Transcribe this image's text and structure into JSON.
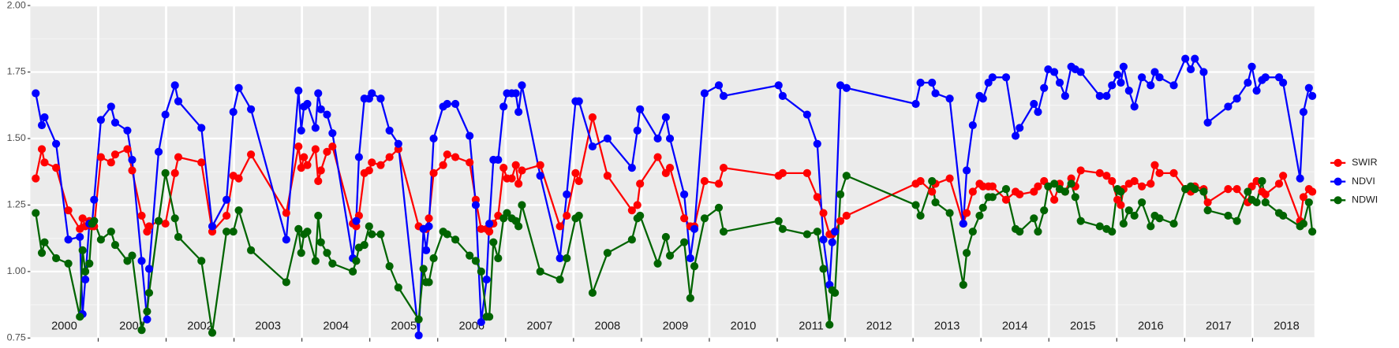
{
  "chart_data": {
    "type": "line",
    "x": [
      2000.08,
      2000.17,
      2000.21,
      2000.38,
      2000.56,
      2000.73,
      2000.77,
      2000.81,
      2000.87,
      2000.91,
      2000.94,
      2001.04,
      2001.19,
      2001.25,
      2001.43,
      2001.5,
      2001.64,
      2001.72,
      2001.75,
      2001.89,
      2001.99,
      2002.13,
      2002.18,
      2002.52,
      2002.68,
      2002.89,
      2002.99,
      2003.07,
      2003.25,
      2003.77,
      2003.95,
      2003.99,
      2004.03,
      2004.08,
      2004.2,
      2004.24,
      2004.28,
      2004.37,
      2004.45,
      2004.75,
      2004.8,
      2004.84,
      2004.92,
      2004.99,
      2005.03,
      2005.16,
      2005.29,
      2005.42,
      2005.72,
      2005.79,
      2005.83,
      2005.87,
      2005.94,
      2006.08,
      2006.14,
      2006.26,
      2006.47,
      2006.56,
      2006.64,
      2006.72,
      2006.76,
      2006.82,
      2006.89,
      2006.97,
      2007.02,
      2007.09,
      2007.15,
      2007.19,
      2007.24,
      2007.51,
      2007.8,
      2007.9,
      2008.03,
      2008.08,
      2008.28,
      2008.5,
      2008.86,
      2008.94,
      2008.98,
      2009.24,
      2009.36,
      2009.42,
      2009.63,
      2009.72,
      2009.78,
      2009.93,
      2010.14,
      2010.21,
      2011.02,
      2011.08,
      2011.44,
      2011.59,
      2011.68,
      2011.77,
      2011.81,
      2011.85,
      2011.93,
      2012.02,
      2013.04,
      2013.11,
      2013.28,
      2013.33,
      2013.54,
      2013.74,
      2013.79,
      2013.88,
      2013.98,
      2014.03,
      2014.11,
      2014.17,
      2014.37,
      2014.51,
      2014.57,
      2014.78,
      2014.84,
      2014.93,
      2014.99,
      2015.08,
      2015.16,
      2015.24,
      2015.33,
      2015.39,
      2015.47,
      2015.75,
      2015.85,
      2015.93,
      2016.01,
      2016.06,
      2016.1,
      2016.18,
      2016.26,
      2016.37,
      2016.5,
      2016.56,
      2016.63,
      2016.84,
      2017.01,
      2017.09,
      2017.15,
      2017.28,
      2017.34,
      2017.64,
      2017.77,
      2017.93,
      2017.99,
      2018.06,
      2018.14,
      2018.19,
      2018.39,
      2018.45,
      2018.7,
      2018.75,
      2018.83,
      2018.88
    ],
    "series": [
      {
        "name": "SWIR",
        "color": "#ff0000",
        "values": [
          1.35,
          1.46,
          1.41,
          1.39,
          1.23,
          1.16,
          1.2,
          1.17,
          1.19,
          1.17,
          1.17,
          1.43,
          1.41,
          1.44,
          1.46,
          1.38,
          1.21,
          1.15,
          1.17,
          1.19,
          1.18,
          1.37,
          1.43,
          1.41,
          1.15,
          1.21,
          1.36,
          1.35,
          1.44,
          1.22,
          1.47,
          1.39,
          1.43,
          1.4,
          1.46,
          1.34,
          1.38,
          1.45,
          1.47,
          1.18,
          1.17,
          1.21,
          1.37,
          1.38,
          1.41,
          1.4,
          1.43,
          1.46,
          1.17,
          1.16,
          1.16,
          1.2,
          1.37,
          1.4,
          1.44,
          1.43,
          1.41,
          1.27,
          1.16,
          1.16,
          1.15,
          1.18,
          1.21,
          1.39,
          1.35,
          1.35,
          1.4,
          1.33,
          1.38,
          1.4,
          1.17,
          1.21,
          1.37,
          1.34,
          1.58,
          1.36,
          1.23,
          1.25,
          1.33,
          1.43,
          1.37,
          1.39,
          1.2,
          1.17,
          1.17,
          1.34,
          1.33,
          1.39,
          1.36,
          1.37,
          1.37,
          1.28,
          1.22,
          1.14,
          1.14,
          1.15,
          1.19,
          1.21,
          1.33,
          1.34,
          1.3,
          1.33,
          1.35,
          1.18,
          1.22,
          1.3,
          1.33,
          1.32,
          1.32,
          1.32,
          1.27,
          1.3,
          1.29,
          1.3,
          1.32,
          1.34,
          1.32,
          1.27,
          1.33,
          1.3,
          1.35,
          1.32,
          1.38,
          1.37,
          1.36,
          1.34,
          1.27,
          1.25,
          1.31,
          1.33,
          1.34,
          1.32,
          1.33,
          1.4,
          1.37,
          1.37,
          1.31,
          1.3,
          1.32,
          1.31,
          1.26,
          1.31,
          1.31,
          1.26,
          1.32,
          1.34,
          1.3,
          1.29,
          1.33,
          1.36,
          1.19,
          1.28,
          1.31,
          1.3
        ]
      },
      {
        "name": "NDVI",
        "color": "#0000ff",
        "values": [
          1.67,
          1.55,
          1.58,
          1.48,
          1.12,
          1.13,
          0.84,
          0.97,
          1.18,
          1.18,
          1.27,
          1.57,
          1.62,
          1.56,
          1.53,
          1.42,
          1.04,
          0.82,
          1.01,
          1.45,
          1.59,
          1.7,
          1.64,
          1.54,
          1.17,
          1.27,
          1.6,
          1.69,
          1.61,
          1.12,
          1.68,
          1.53,
          1.62,
          1.63,
          1.54,
          1.67,
          1.61,
          1.59,
          1.52,
          1.05,
          1.19,
          1.43,
          1.65,
          1.65,
          1.67,
          1.65,
          1.53,
          1.48,
          0.76,
          1.16,
          1.08,
          1.17,
          1.5,
          1.62,
          1.63,
          1.63,
          1.51,
          1.25,
          0.81,
          0.97,
          1.18,
          1.42,
          1.42,
          1.62,
          1.67,
          1.67,
          1.67,
          1.6,
          1.7,
          1.36,
          1.05,
          1.29,
          1.64,
          1.64,
          1.47,
          1.5,
          1.39,
          1.53,
          1.61,
          1.5,
          1.58,
          1.5,
          1.29,
          1.05,
          1.16,
          1.67,
          1.7,
          1.66,
          1.7,
          1.66,
          1.59,
          1.48,
          1.12,
          0.95,
          1.11,
          1.15,
          1.7,
          1.69,
          1.63,
          1.71,
          1.71,
          1.67,
          1.65,
          1.18,
          1.38,
          1.55,
          1.66,
          1.65,
          1.71,
          1.73,
          1.73,
          1.51,
          1.54,
          1.63,
          1.6,
          1.69,
          1.76,
          1.75,
          1.71,
          1.66,
          1.77,
          1.76,
          1.75,
          1.66,
          1.66,
          1.7,
          1.74,
          1.71,
          1.77,
          1.68,
          1.62,
          1.73,
          1.7,
          1.75,
          1.73,
          1.7,
          1.8,
          1.76,
          1.8,
          1.75,
          1.56,
          1.62,
          1.65,
          1.71,
          1.77,
          1.68,
          1.72,
          1.73,
          1.73,
          1.71,
          1.35,
          1.6,
          1.69,
          1.66
        ]
      },
      {
        "name": "NDWI",
        "color": "#006400",
        "values": [
          1.22,
          1.07,
          1.11,
          1.05,
          1.03,
          0.83,
          1.08,
          1.0,
          1.03,
          1.18,
          1.19,
          1.12,
          1.15,
          1.1,
          1.04,
          1.06,
          0.78,
          0.85,
          0.92,
          1.19,
          1.37,
          1.2,
          1.13,
          1.04,
          0.77,
          1.15,
          1.15,
          1.23,
          1.08,
          0.96,
          1.16,
          1.07,
          1.14,
          1.15,
          1.04,
          1.21,
          1.11,
          1.07,
          1.03,
          1.0,
          1.04,
          1.09,
          1.1,
          1.17,
          1.14,
          1.14,
          1.02,
          0.94,
          0.82,
          1.01,
          0.96,
          0.96,
          1.05,
          1.15,
          1.14,
          1.12,
          1.06,
          1.04,
          1.0,
          0.83,
          0.83,
          1.11,
          1.05,
          1.2,
          1.22,
          1.2,
          1.19,
          1.17,
          1.25,
          1.0,
          0.97,
          1.05,
          1.2,
          1.21,
          0.92,
          1.07,
          1.12,
          1.2,
          1.21,
          1.03,
          1.13,
          1.06,
          1.11,
          0.9,
          1.02,
          1.2,
          1.24,
          1.15,
          1.19,
          1.16,
          1.14,
          1.15,
          1.01,
          0.8,
          0.93,
          0.92,
          1.29,
          1.36,
          1.25,
          1.21,
          1.34,
          1.26,
          1.22,
          0.95,
          1.07,
          1.15,
          1.21,
          1.24,
          1.28,
          1.28,
          1.31,
          1.16,
          1.15,
          1.2,
          1.15,
          1.23,
          1.32,
          1.33,
          1.31,
          1.3,
          1.33,
          1.28,
          1.19,
          1.17,
          1.16,
          1.15,
          1.31,
          1.3,
          1.18,
          1.23,
          1.21,
          1.26,
          1.17,
          1.21,
          1.2,
          1.18,
          1.31,
          1.32,
          1.31,
          1.3,
          1.23,
          1.21,
          1.19,
          1.3,
          1.27,
          1.26,
          1.34,
          1.26,
          1.22,
          1.21,
          1.17,
          1.18,
          1.26,
          1.15
        ]
      }
    ],
    "xlim": [
      2000,
      2018.91
    ],
    "xticks": [
      2001,
      2002,
      2003,
      2004,
      2005,
      2006,
      2007,
      2008,
      2009,
      2010,
      2011,
      2012,
      2013,
      2014,
      2015,
      2016,
      2017,
      2018
    ],
    "ylim": [
      0.75,
      2.0
    ],
    "yticks": [
      0.75,
      {
        "value": 1,
        "label": "1.00"
      },
      1.25,
      {
        "value": 1.5,
        "label": "1.50"
      },
      1.75,
      {
        "value": 2,
        "label": "2.00"
      }
    ],
    "annotations": [
      {
        "text": "2000",
        "x": 2000.5
      },
      {
        "text": "2001",
        "x": 2001.5
      },
      {
        "text": "2002",
        "x": 2002.5
      },
      {
        "text": "2003",
        "x": 2003.5
      },
      {
        "text": "2004",
        "x": 2004.5
      },
      {
        "text": "2005",
        "x": 2005.5
      },
      {
        "text": "2006",
        "x": 2006.5
      },
      {
        "text": "2007",
        "x": 2007.5
      },
      {
        "text": "2008",
        "x": 2008.5
      },
      {
        "text": "2009",
        "x": 2009.5
      },
      {
        "text": "2010",
        "x": 2010.5
      },
      {
        "text": "2011",
        "x": 2011.5
      },
      {
        "text": "2012",
        "x": 2012.5
      },
      {
        "text": "2013",
        "x": 2013.5
      },
      {
        "text": "2014",
        "x": 2014.5
      },
      {
        "text": "2015",
        "x": 2015.5
      },
      {
        "text": "2016",
        "x": 2016.5
      },
      {
        "text": "2017",
        "x": 2017.5
      },
      {
        "text": "2018",
        "x": 2018.5
      }
    ],
    "grid": true,
    "legend": "right"
  }
}
